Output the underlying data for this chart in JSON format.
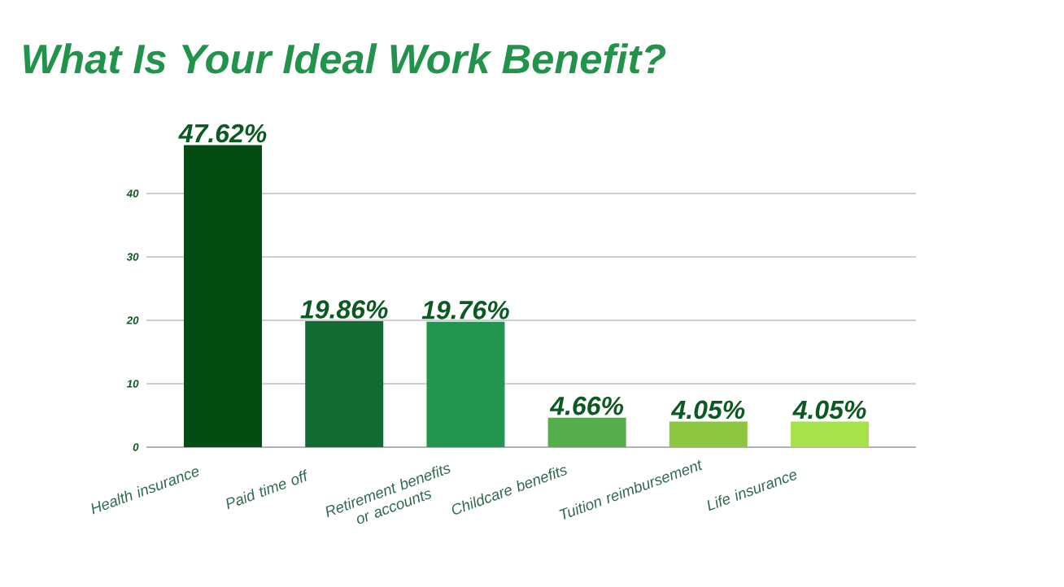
{
  "chart_data": {
    "type": "bar",
    "title": "What Is Your Ideal Work Benefit?",
    "categories": [
      "Health insurance",
      "Paid time off",
      "Retirement benefits or accounts",
      "Childcare benefits",
      "Tuition reimbursement",
      "Life insurance"
    ],
    "values": [
      47.62,
      19.86,
      19.76,
      4.66,
      4.05,
      4.05
    ],
    "value_labels": [
      "47.62%",
      "19.86%",
      "19.76%",
      "4.66%",
      "4.05%",
      "4.05%"
    ],
    "colors": [
      "#034d12",
      "#126b32",
      "#229550",
      "#55ad4c",
      "#8dc63f",
      "#a8e24a"
    ],
    "ylim": [
      0,
      47.62
    ],
    "yticks": [
      0,
      10,
      20,
      30,
      40
    ],
    "grid": "y"
  }
}
